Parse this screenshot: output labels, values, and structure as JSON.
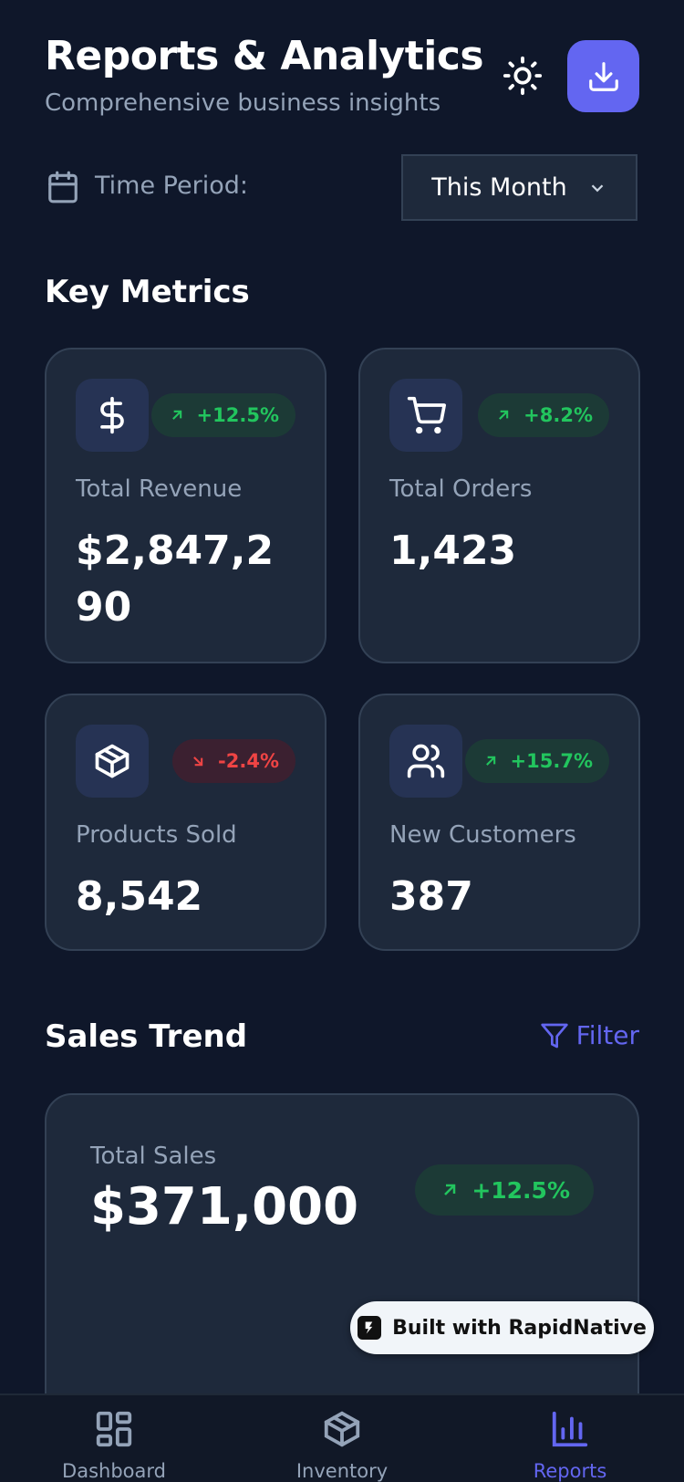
{
  "header": {
    "title": "Reports & Analytics",
    "subtitle": "Comprehensive business insights"
  },
  "time_period": {
    "label": "Time Period:",
    "value": "This Month"
  },
  "key_metrics": {
    "title": "Key Metrics",
    "cards": [
      {
        "label": "Total Revenue",
        "value": "$2,847,290",
        "change": "+12.5%"
      },
      {
        "label": "Total Orders",
        "value": "1,423",
        "change": "+8.2%"
      },
      {
        "label": "Products Sold",
        "value": "8,542",
        "change": "-2.4%"
      },
      {
        "label": "New Customers",
        "value": "387",
        "change": "+15.7%"
      }
    ]
  },
  "sales_trend": {
    "title": "Sales Trend",
    "filter": "Filter",
    "total_label": "Total Sales",
    "total_value": "$371,000",
    "change": "+12.5%"
  },
  "badge": "Built with RapidNative",
  "nav": [
    {
      "label": "Dashboard"
    },
    {
      "label": "Inventory"
    },
    {
      "label": "Reports"
    }
  ]
}
